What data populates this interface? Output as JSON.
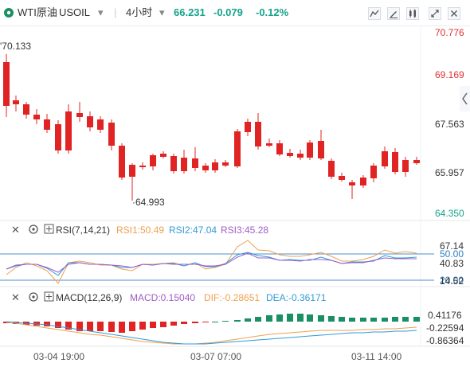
{
  "header": {
    "symbol": "WTI原油",
    "code": "USOIL",
    "interval": "4小时",
    "price": "66.231",
    "change": "-0.079",
    "change_pct": "-0.12%",
    "price_color": "#13a38a",
    "icons": [
      "compare-icon",
      "draw-icon",
      "indicator-icon",
      "fullscreen-icon",
      "close-icon"
    ]
  },
  "main_panel": {
    "price_labels": [
      "70.776",
      "69.169",
      "67.563",
      "65.957",
      "64.350"
    ],
    "high_marker": "70.133",
    "low_marker": "64.993",
    "colors": {
      "up": "#1a8f64",
      "down": "#e02424"
    }
  },
  "rsi_panel": {
    "name": "RSI(7,14,21)",
    "rsi1": "RSI1:50.49",
    "rsi2": "RSI2:47.04",
    "rsi3": "RSI3:45.28",
    "levels": [
      "67.14",
      "50.00",
      "40.83",
      "20.00",
      "14.52"
    ],
    "colors": {
      "rsi1": "#f0a050",
      "rsi2": "#2f9bd8",
      "rsi3": "#a05cc8"
    }
  },
  "macd_panel": {
    "name": "MACD(12,26,9)",
    "macd": "MACD:0.15040",
    "dif": "DIF:-0.28651",
    "dea": "DEA:-0.36171",
    "levels": [
      "0.41176",
      "-0.22594",
      "-0.86364"
    ],
    "colors": {
      "macd": "#a05cc8",
      "dif": "#f0a050",
      "dea": "#2f9bd8"
    }
  },
  "time_axis": [
    "03-04 19:00",
    "03-07 07:00",
    "03-11 14:00"
  ]
}
